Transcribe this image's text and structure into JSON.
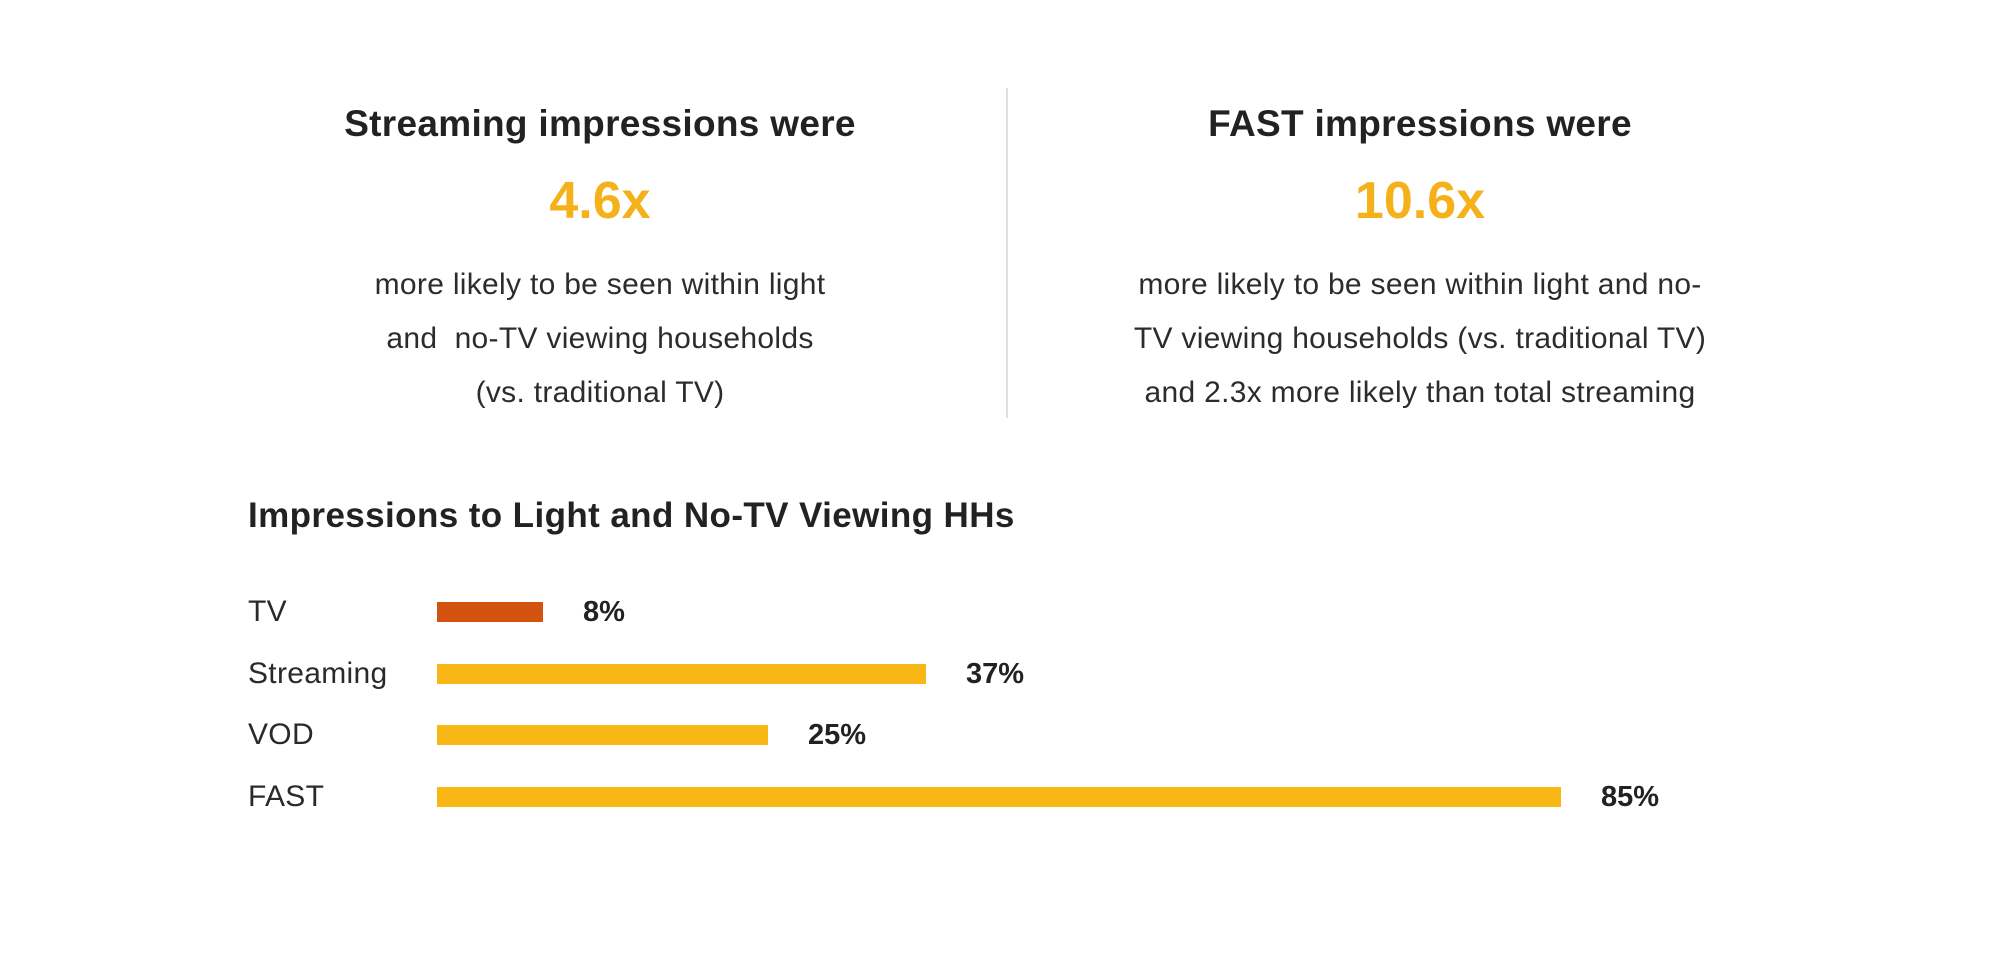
{
  "stats": {
    "left": {
      "heading": "Streaming impressions were",
      "multiplier": "4.6x",
      "description_lines": [
        "more likely to be seen within light",
        "and  no-TV viewing households",
        "(vs. traditional TV)"
      ]
    },
    "right": {
      "heading": "FAST impressions were",
      "multiplier": "10.6x",
      "description_lines": [
        "more likely to be seen within light and no-",
        "TV viewing households (vs. traditional TV)",
        "and 2.3x more likely than total streaming"
      ]
    }
  },
  "colors": {
    "accent": "#F5B119",
    "tv_bar": "#D4520F",
    "bar": "#F9B716",
    "divider": "#E0E0E0",
    "text": "#222222"
  },
  "chart_data": {
    "type": "bar",
    "orientation": "horizontal",
    "title": "Impressions to Light and No-TV Viewing HHs",
    "categories": [
      "TV",
      "Streaming",
      "VOD",
      "FAST"
    ],
    "values": [
      8,
      37,
      25,
      85
    ],
    "value_labels": [
      "8%",
      "37%",
      "25%",
      "85%"
    ],
    "unit": "%",
    "bar_colors": [
      "#D4520F",
      "#F9B716",
      "#F9B716",
      "#F9B716"
    ],
    "xlabel": "",
    "ylabel": "",
    "xlim": [
      0,
      85
    ],
    "grid": false,
    "legend": "none"
  }
}
